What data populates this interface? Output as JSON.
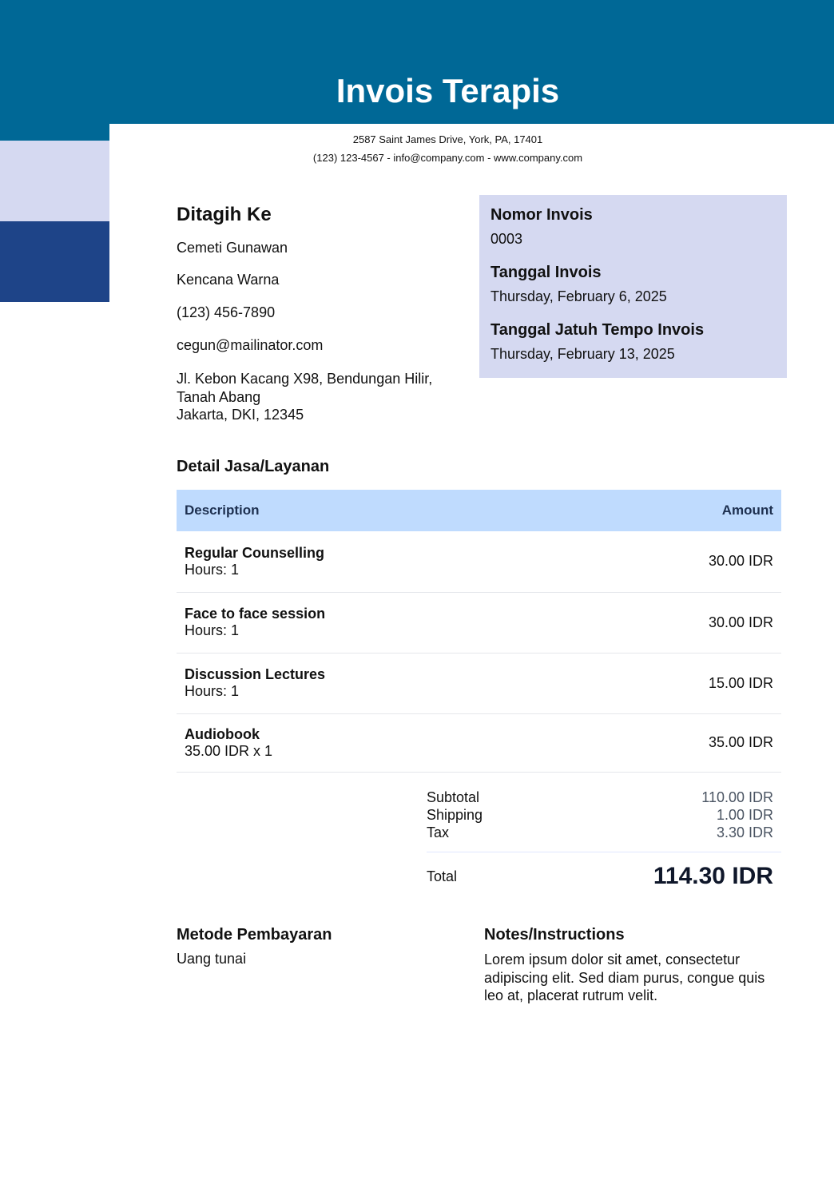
{
  "header": {
    "title": "Invois Terapis",
    "address": "2587 Saint James Drive, York, PA, 17401",
    "contact": "(123) 123-4567 - info@company.com - www.company.com"
  },
  "bill_to": {
    "heading": "Ditagih Ke",
    "name": "Cemeti Gunawan",
    "company": "Kencana Warna",
    "phone": "(123) 456-7890",
    "email": "cegun@mailinator.com",
    "address1": "Jl. Kebon Kacang X98, Bendungan Hilir,",
    "address2": "Tanah Abang",
    "address3": "Jakarta, DKI, 12345"
  },
  "meta": {
    "number_label": "Nomor Invois",
    "number": "0003",
    "date_label": "Tanggal Invois",
    "date": "Thursday, February 6, 2025",
    "due_label": "Tanggal Jatuh Tempo Invois",
    "due": "Thursday, February 13, 2025"
  },
  "services": {
    "heading": "Detail Jasa/Layanan",
    "col_desc": "Description",
    "col_amount": "Amount",
    "items": [
      {
        "name": "Regular Counselling",
        "detail": "Hours: 1",
        "amount": "30.00 IDR"
      },
      {
        "name": "Face to face session",
        "detail": "Hours: 1",
        "amount": "30.00 IDR"
      },
      {
        "name": "Discussion Lectures",
        "detail": "Hours: 1",
        "amount": "15.00 IDR"
      },
      {
        "name": "Audiobook",
        "detail": "35.00 IDR x 1",
        "amount": "35.00 IDR"
      }
    ]
  },
  "summary": {
    "subtotal_label": "Subtotal",
    "subtotal": "110.00 IDR",
    "shipping_label": "Shipping",
    "shipping": "1.00 IDR",
    "tax_label": "Tax",
    "tax": "3.30 IDR",
    "total_label": "Total",
    "total": "114.30 IDR"
  },
  "payment": {
    "heading": "Metode Pembayaran",
    "method": "Uang tunai"
  },
  "notes": {
    "heading": "Notes/Instructions",
    "text": "Lorem ipsum dolor sit amet, consectetur adipiscing elit. Sed diam purus, congue quis leo at, placerat rutrum velit."
  },
  "colors": {
    "header": "#006896",
    "band_light": "#d5d9f1",
    "band_dark": "#1e4488",
    "table_header": "#bfdbfe"
  }
}
